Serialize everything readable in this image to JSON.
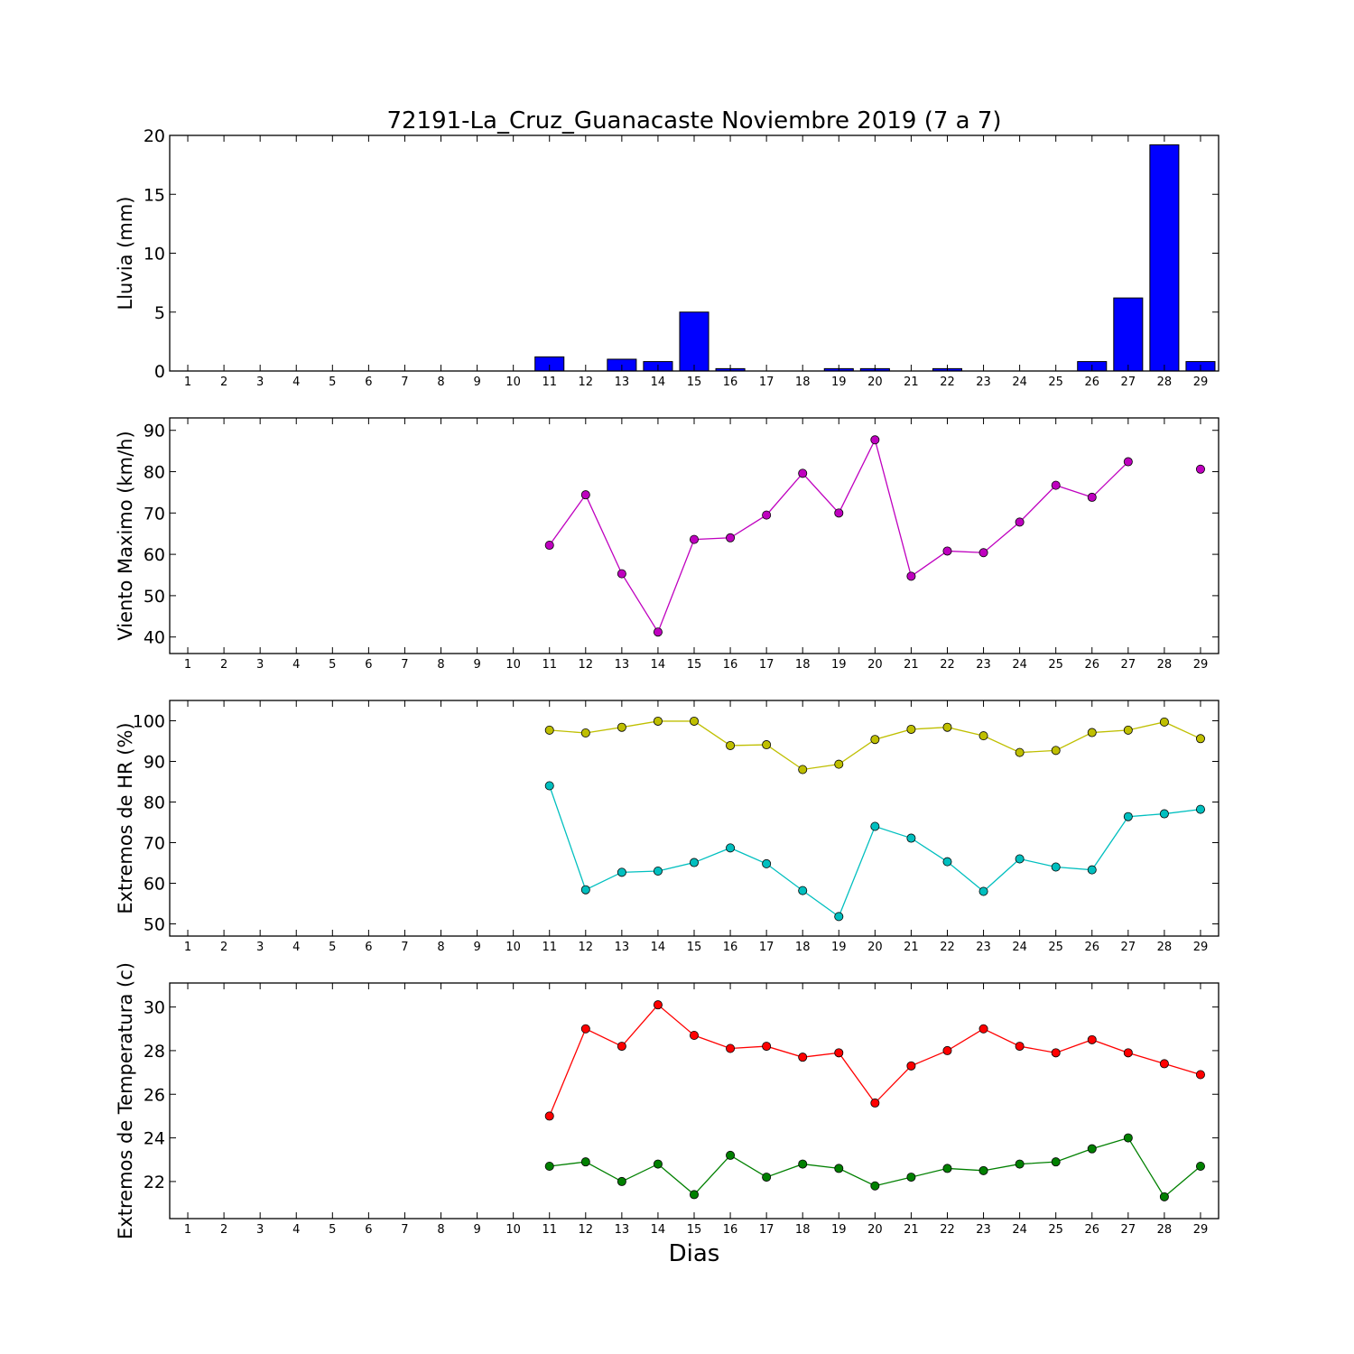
{
  "chart_data": {
    "title": "72191-La_Cruz_Guanacaste Noviembre 2019  (7 a 7)",
    "xlabel": "Dias",
    "days": [
      1,
      2,
      3,
      4,
      5,
      6,
      7,
      8,
      9,
      10,
      11,
      12,
      13,
      14,
      15,
      16,
      17,
      18,
      19,
      20,
      21,
      22,
      23,
      24,
      25,
      26,
      27,
      28,
      29
    ],
    "panels": [
      {
        "type": "bar",
        "ylabel": "Lluvia (mm)",
        "ylim": [
          0,
          20
        ],
        "yticks": [
          0,
          5,
          10,
          15,
          20
        ],
        "series": [
          {
            "color": "#0000ff",
            "values": [
              null,
              null,
              null,
              null,
              null,
              null,
              null,
              null,
              null,
              null,
              1.2,
              0,
              1.0,
              0.8,
              5.0,
              0.2,
              0,
              0,
              0.2,
              0.2,
              0,
              0.2,
              0,
              0,
              0,
              0.8,
              6.2,
              19.2,
              0.8
            ]
          }
        ]
      },
      {
        "type": "line",
        "ylabel": "Viento Maximo (km/h)",
        "ylim": [
          36,
          93
        ],
        "yticks": [
          40,
          50,
          60,
          70,
          80,
          90
        ],
        "series": [
          {
            "color": "#bf00bf",
            "values": [
              null,
              null,
              null,
              null,
              null,
              null,
              null,
              null,
              null,
              null,
              62.2,
              74.4,
              55.3,
              41.2,
              63.6,
              64.0,
              69.5,
              79.6,
              70.0,
              87.7,
              54.7,
              60.8,
              60.4,
              67.8,
              76.7,
              73.8,
              82.4,
              null,
              80.6
            ]
          }
        ]
      },
      {
        "type": "line",
        "ylabel": "Extremos de HR (%)",
        "ylim": [
          47,
          105
        ],
        "yticks": [
          50,
          60,
          70,
          80,
          90,
          100
        ],
        "series": [
          {
            "color": "#bfbf00",
            "values": [
              null,
              null,
              null,
              null,
              null,
              null,
              null,
              null,
              null,
              null,
              97.7,
              97.0,
              98.4,
              99.9,
              99.9,
              93.9,
              94.1,
              88.0,
              89.3,
              95.4,
              97.9,
              98.4,
              96.3,
              92.2,
              92.7,
              97.1,
              97.7,
              99.7,
              95.6
            ]
          },
          {
            "color": "#00bfbf",
            "values": [
              null,
              null,
              null,
              null,
              null,
              null,
              null,
              null,
              null,
              null,
              84.0,
              58.4,
              62.7,
              63.0,
              65.1,
              68.7,
              64.8,
              58.2,
              51.8,
              74.0,
              71.1,
              65.3,
              58.0,
              66.0,
              64.0,
              63.3,
              76.4,
              77.1,
              78.2
            ]
          }
        ]
      },
      {
        "type": "line",
        "ylabel": "Extremos de Temperatura (c)",
        "ylim": [
          20.3,
          31.1
        ],
        "yticks": [
          22,
          24,
          26,
          28,
          30
        ],
        "series": [
          {
            "color": "#ff0000",
            "values": [
              null,
              null,
              null,
              null,
              null,
              null,
              null,
              null,
              null,
              null,
              25.0,
              29.0,
              28.2,
              30.1,
              28.7,
              28.1,
              28.2,
              27.7,
              27.9,
              25.6,
              27.3,
              28.0,
              29.0,
              28.2,
              27.9,
              28.5,
              27.9,
              27.4,
              26.9
            ]
          },
          {
            "color": "#008000",
            "values": [
              null,
              null,
              null,
              null,
              null,
              null,
              null,
              null,
              null,
              null,
              22.7,
              22.9,
              22.0,
              22.8,
              21.4,
              23.2,
              22.2,
              22.8,
              22.6,
              21.8,
              22.2,
              22.6,
              22.5,
              22.8,
              22.9,
              23.5,
              24.0,
              21.3,
              22.7
            ]
          }
        ]
      }
    ]
  }
}
